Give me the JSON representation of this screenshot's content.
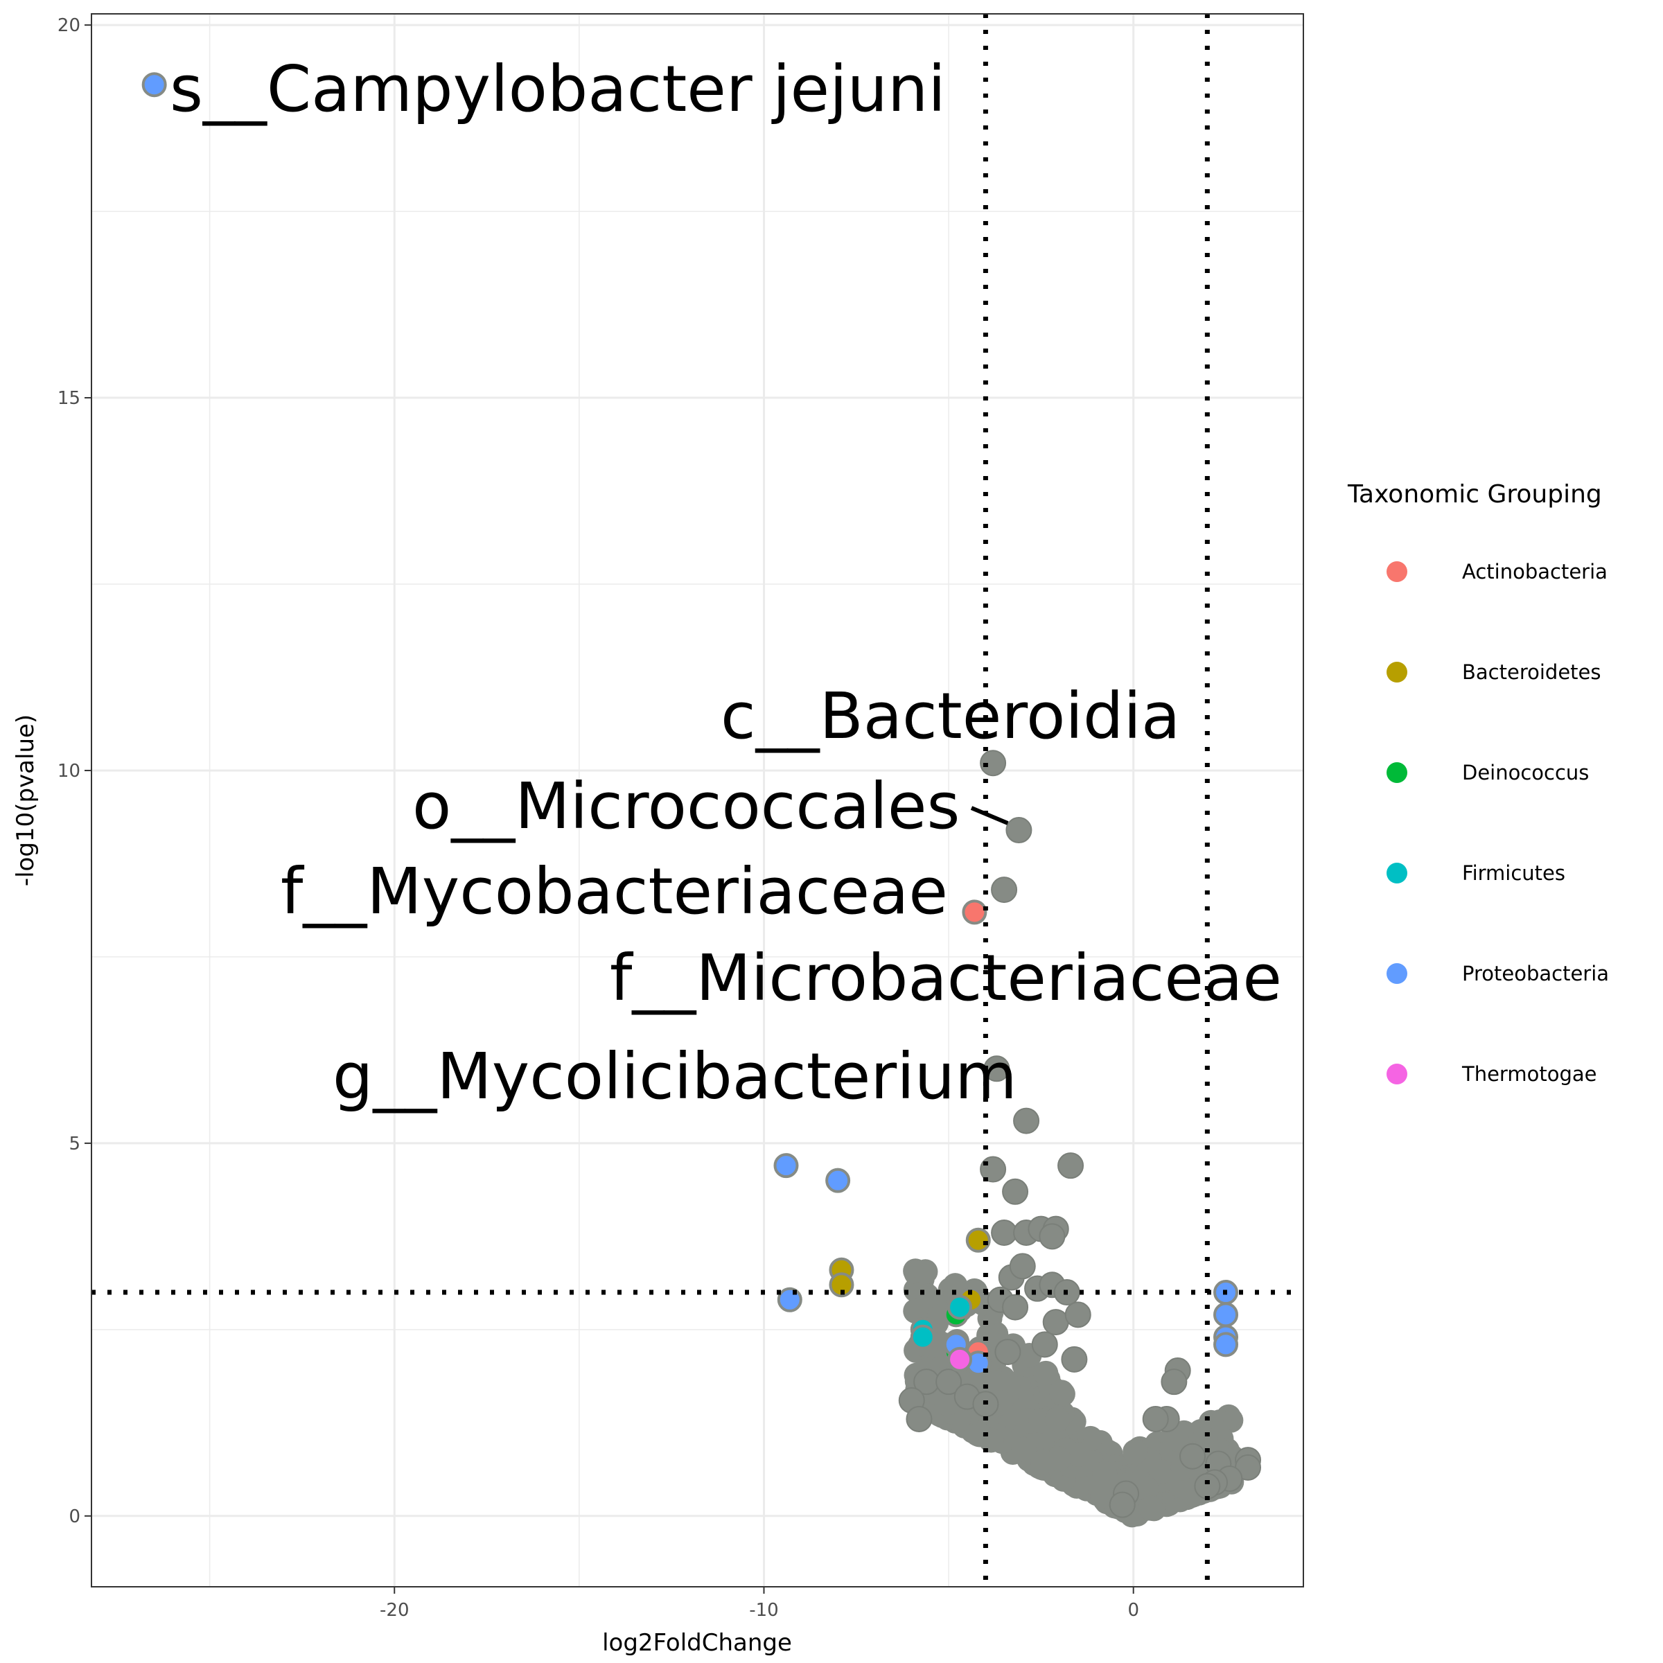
{
  "chart_data": {
    "type": "scatter",
    "xlabel": "log2FoldChange",
    "ylabel": "-log10(pvalue)",
    "xlim": [
      -28.2,
      4.6
    ],
    "ylim": [
      -0.95,
      20.15
    ],
    "x_ticks": [
      -20,
      -10,
      0
    ],
    "y_ticks": [
      0,
      5,
      10,
      15,
      20
    ],
    "grid": true,
    "thresholds": {
      "vertical": [
        -4,
        2
      ],
      "horizontal": 3
    },
    "legend": {
      "title": "Taxonomic Grouping",
      "placement": "right",
      "items": [
        {
          "name": "Actinobacteria",
          "color": "#F8766D"
        },
        {
          "name": "Bacteroidetes",
          "color": "#B79F00"
        },
        {
          "name": "Deinococcus",
          "color": "#00BA38"
        },
        {
          "name": "Firmicutes",
          "color": "#00BFC4"
        },
        {
          "name": "Proteobacteria",
          "color": "#619CFF"
        },
        {
          "name": "Thermotogae",
          "color": "#F564E3"
        }
      ]
    },
    "background_color": "#868B85",
    "series": [
      {
        "name": "Actinobacteria",
        "color": "#F8766D",
        "points": [
          [
            -4.3,
            8.1
          ],
          [
            -4.2,
            2.2
          ]
        ]
      },
      {
        "name": "Bacteroidetes",
        "color": "#B79F00",
        "points": [
          [
            -4.2,
            3.7
          ],
          [
            -4.4,
            2.9
          ],
          [
            -7.9,
            3.3
          ],
          [
            -7.9,
            3.1
          ]
        ]
      },
      {
        "name": "Deinococcus",
        "color": "#00BA38",
        "points": [
          [
            -4.8,
            2.7
          ],
          [
            -4.8,
            2.2
          ]
        ]
      },
      {
        "name": "Firmicutes",
        "color": "#00BFC4",
        "points": [
          [
            -4.7,
            2.8
          ],
          [
            -5.7,
            2.5
          ],
          [
            -5.7,
            2.4
          ]
        ]
      },
      {
        "name": "Proteobacteria",
        "color": "#619CFF",
        "points": [
          [
            -26.5,
            19.2
          ],
          [
            -9.4,
            4.7
          ],
          [
            -8.0,
            4.5
          ],
          [
            -9.3,
            2.9
          ],
          [
            -4.8,
            2.3
          ],
          [
            -4.2,
            2.05
          ],
          [
            2.5,
            3.0
          ],
          [
            2.5,
            2.7
          ],
          [
            2.5,
            2.4
          ],
          [
            2.5,
            2.3
          ]
        ]
      },
      {
        "name": "Thermotogae",
        "color": "#F564E3",
        "points": [
          [
            -4.7,
            2.1
          ]
        ]
      }
    ],
    "background_points": [
      [
        -3.8,
        10.1
      ],
      [
        -3.1,
        9.2
      ],
      [
        -3.5,
        8.4
      ],
      [
        -3.7,
        6.0
      ],
      [
        -2.9,
        5.3
      ],
      [
        -3.8,
        4.65
      ],
      [
        -1.7,
        4.7
      ],
      [
        -3.2,
        4.35
      ],
      [
        -3.5,
        3.8
      ],
      [
        -2.9,
        3.8
      ],
      [
        -2.5,
        3.85
      ],
      [
        -2.1,
        3.85
      ],
      [
        -2.2,
        3.75
      ],
      [
        -3.3,
        3.2
      ],
      [
        -3.0,
        3.35
      ],
      [
        -2.6,
        3.05
      ],
      [
        -2.2,
        3.1
      ],
      [
        -1.8,
        3.0
      ],
      [
        -3.6,
        2.9
      ],
      [
        -3.2,
        2.8
      ],
      [
        -2.1,
        2.6
      ],
      [
        -1.5,
        2.7
      ],
      [
        -3.4,
        2.2
      ],
      [
        -2.4,
        2.3
      ],
      [
        -1.6,
        2.1
      ],
      [
        -5.6,
        1.8
      ],
      [
        -5.0,
        1.8
      ],
      [
        -4.5,
        1.6
      ],
      [
        -4.0,
        1.5
      ],
      [
        -6.0,
        1.55
      ],
      [
        -5.8,
        1.3
      ],
      [
        1.2,
        1.95
      ],
      [
        1.1,
        1.8
      ],
      [
        0.9,
        1.3
      ],
      [
        0.6,
        1.3
      ],
      [
        1.6,
        0.8
      ],
      [
        2.3,
        0.7
      ],
      [
        3.1,
        0.75
      ],
      [
        3.1,
        0.65
      ],
      [
        2.6,
        0.5
      ],
      [
        2.2,
        0.45
      ],
      [
        2.0,
        0.4
      ],
      [
        -0.2,
        0.3
      ],
      [
        -0.3,
        0.15
      ]
    ],
    "annotations": [
      {
        "text": "s__Campylobacter jejuni",
        "x": -26.5,
        "y": 19.2
      },
      {
        "text": "c__Bacteroidia",
        "x": -3.8,
        "y": 10.1
      },
      {
        "text": "o__Micrococcales",
        "x": -3.1,
        "y": 9.2
      },
      {
        "text": "f__Mycobacteriaceae",
        "x": -4.3,
        "y": 8.1
      },
      {
        "text": "f__Microbacteriaceae",
        "x": -3.5,
        "y": 8.4
      },
      {
        "text": "g__Mycolicibacterium",
        "x": -3.7,
        "y": 6.0
      }
    ]
  }
}
